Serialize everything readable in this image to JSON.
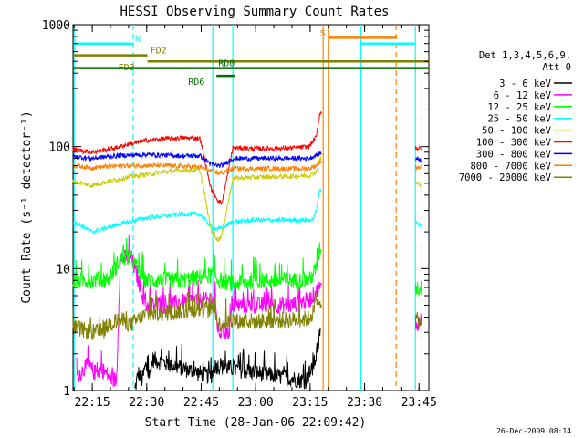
{
  "chart_data": {
    "type": "line",
    "title": "HESSI Observing Summary Count Rates",
    "xlabel": "Start Time (28-Jan-06 22:09:42)",
    "ylabel": "Count Rate (s⁻¹ detector⁻¹)",
    "y_scale": "log",
    "ylim": [
      1,
      1000
    ],
    "xlim_minutes_after_22_09_42": [
      0,
      98
    ],
    "y_ticks": [
      "1",
      "10",
      "100",
      "1000"
    ],
    "x_ticks": [
      {
        "label": "22:15",
        "minute": 5.3
      },
      {
        "label": "22:30",
        "minute": 20.3
      },
      {
        "label": "22:45",
        "minute": 35.3
      },
      {
        "label": "23:00",
        "minute": 50.3
      },
      {
        "label": "23:15",
        "minute": 65.3
      },
      {
        "label": "23:30",
        "minute": 80.3
      },
      {
        "label": "23:45",
        "minute": 95.3
      }
    ],
    "legend_header": [
      "Det 1,3,4,5,6,9,",
      "Att 0"
    ],
    "legend_placement": "right",
    "timestamp": "26-Dec-2009 08:14",
    "gap_minutes": [
      [
        68.5,
        94.3
      ]
    ],
    "series": [
      {
        "name": "3 - 6 keV",
        "color": "#000000",
        "points": [
          [
            17,
            1
          ],
          [
            18,
            1.4
          ],
          [
            19,
            1.2
          ],
          [
            20,
            1.6
          ],
          [
            21,
            1.3
          ],
          [
            22,
            1.8
          ],
          [
            38,
            1.3
          ],
          [
            39,
            1.6
          ],
          [
            64,
            1.2
          ],
          [
            66,
            1.5
          ],
          [
            67.5,
            2.2
          ],
          [
            68.2,
            3.5
          ]
        ]
      },
      {
        "name": "6 - 12 keV",
        "color": "#ff00ff",
        "points": [
          [
            1,
            1.3
          ],
          [
            4,
            1.6
          ],
          [
            6,
            1.4
          ],
          [
            8,
            1.5
          ],
          [
            10,
            1.3
          ],
          [
            12,
            1.2
          ],
          [
            13,
            12
          ],
          [
            16,
            12.5
          ],
          [
            20,
            5
          ],
          [
            25,
            5
          ],
          [
            33,
            5.5
          ],
          [
            39,
            5.5
          ],
          [
            40,
            3
          ],
          [
            43,
            3
          ],
          [
            44,
            5
          ],
          [
            50,
            5
          ],
          [
            55,
            5
          ],
          [
            60,
            5
          ],
          [
            65,
            5.5
          ],
          [
            68,
            7
          ],
          [
            94.5,
            3.5
          ],
          [
            96,
            3.8
          ]
        ]
      },
      {
        "name": "12 - 25 keV",
        "color": "#00ff00",
        "points": [
          [
            0,
            8
          ],
          [
            5,
            8
          ],
          [
            10,
            8.2
          ],
          [
            13,
            12
          ],
          [
            16,
            12
          ],
          [
            20,
            8
          ],
          [
            30,
            8
          ],
          [
            35,
            8.5
          ],
          [
            39,
            9
          ],
          [
            40,
            8
          ],
          [
            44,
            7.5
          ],
          [
            50,
            8
          ],
          [
            60,
            8
          ],
          [
            65,
            8
          ],
          [
            67,
            10
          ],
          [
            68,
            15
          ],
          [
            94.5,
            7
          ],
          [
            96,
            6.8
          ]
        ]
      },
      {
        "name": "25 - 50 keV",
        "color": "#00ffff",
        "points": [
          [
            0,
            24
          ],
          [
            3,
            22
          ],
          [
            5,
            20
          ],
          [
            8,
            21
          ],
          [
            10,
            22
          ],
          [
            15,
            24
          ],
          [
            20,
            26
          ],
          [
            25,
            27
          ],
          [
            30,
            28
          ],
          [
            35,
            28
          ],
          [
            38,
            22
          ],
          [
            40,
            21
          ],
          [
            44,
            24
          ],
          [
            50,
            25
          ],
          [
            60,
            25
          ],
          [
            66,
            25
          ],
          [
            67,
            30
          ],
          [
            68,
            45
          ],
          [
            94.5,
            24
          ],
          [
            96,
            22
          ]
        ]
      },
      {
        "name": "50 - 100 keV",
        "color": "#cccc00",
        "points": [
          [
            0,
            52
          ],
          [
            5,
            48
          ],
          [
            10,
            52
          ],
          [
            15,
            56
          ],
          [
            20,
            59
          ],
          [
            25,
            62
          ],
          [
            30,
            64
          ],
          [
            35,
            64
          ],
          [
            38,
            21
          ],
          [
            40,
            17
          ],
          [
            41,
            19
          ],
          [
            44,
            55
          ],
          [
            50,
            56
          ],
          [
            60,
            57
          ],
          [
            65,
            58
          ],
          [
            67,
            62
          ],
          [
            68,
            80
          ],
          [
            94.5,
            50
          ],
          [
            96,
            49
          ]
        ]
      },
      {
        "name": "100 - 300 keV",
        "color": "#ff0000",
        "points": [
          [
            0,
            95
          ],
          [
            5,
            90
          ],
          [
            10,
            95
          ],
          [
            15,
            104
          ],
          [
            20,
            112
          ],
          [
            25,
            116
          ],
          [
            30,
            118
          ],
          [
            35,
            117
          ],
          [
            38,
            45
          ],
          [
            40,
            36
          ],
          [
            41,
            34
          ],
          [
            44,
            98
          ],
          [
            50,
            96
          ],
          [
            60,
            97
          ],
          [
            65,
            100
          ],
          [
            67,
            120
          ],
          [
            68,
            190
          ],
          [
            94.5,
            98
          ],
          [
            96,
            95
          ]
        ]
      },
      {
        "name": "300 - 800 keV",
        "color": "#0000ff",
        "points": [
          [
            0,
            83
          ],
          [
            5,
            80
          ],
          [
            10,
            83
          ],
          [
            15,
            85
          ],
          [
            20,
            86
          ],
          [
            25,
            85
          ],
          [
            30,
            84
          ],
          [
            35,
            84
          ],
          [
            38,
            72
          ],
          [
            40,
            70
          ],
          [
            41,
            70
          ],
          [
            44,
            80
          ],
          [
            50,
            80
          ],
          [
            60,
            80
          ],
          [
            65,
            80
          ],
          [
            67,
            85
          ],
          [
            68,
            88
          ],
          [
            94.5,
            80
          ],
          [
            96,
            78
          ]
        ]
      },
      {
        "name": "800 - 7000 keV",
        "color": "#ff8000",
        "points": [
          [
            0,
            70
          ],
          [
            5,
            67
          ],
          [
            10,
            69
          ],
          [
            15,
            70
          ],
          [
            20,
            70
          ],
          [
            25,
            70
          ],
          [
            30,
            69
          ],
          [
            35,
            68
          ],
          [
            38,
            63
          ],
          [
            40,
            61
          ],
          [
            41,
            61
          ],
          [
            44,
            66
          ],
          [
            50,
            66
          ],
          [
            60,
            66
          ],
          [
            65,
            66
          ],
          [
            67,
            70
          ],
          [
            68,
            75
          ],
          [
            94.5,
            68
          ],
          [
            96,
            67
          ]
        ]
      },
      {
        "name": "7000 - 20000 keV",
        "color": "#808000",
        "points": [
          [
            0,
            3.3
          ],
          [
            5,
            3
          ],
          [
            8,
            3
          ],
          [
            10,
            3.5
          ],
          [
            13,
            3.8
          ],
          [
            16,
            3.5
          ],
          [
            20,
            4.2
          ],
          [
            25,
            4.3
          ],
          [
            30,
            4.5
          ],
          [
            35,
            4.6
          ],
          [
            39,
            4.6
          ],
          [
            40,
            3.5
          ],
          [
            44,
            3.7
          ],
          [
            50,
            3.7
          ],
          [
            60,
            3.8
          ],
          [
            65,
            3.9
          ],
          [
            68,
            5.5
          ],
          [
            94.5,
            3.8
          ],
          [
            96,
            3.6
          ]
        ]
      }
    ],
    "event_markers": [
      {
        "label": "N",
        "color": "#00ffff",
        "y": 700,
        "x_ranges": [
          [
            0,
            16.6
          ],
          [
            79.3,
            94.3
          ]
        ]
      },
      {
        "label": "FD2",
        "color": "#808000",
        "y": 560,
        "x_ranges": [
          [
            0,
            20.5
          ]
        ]
      },
      {
        "label": "FD3",
        "color": "#808000",
        "y": 500,
        "x_ranges": [
          [
            20.5,
            98
          ]
        ]
      },
      {
        "label": "RD0",
        "color": "#007000",
        "y": 440,
        "x_ranges": [
          [
            0,
            98
          ]
        ]
      },
      {
        "label": "RD6",
        "color": "#007000",
        "y": 380,
        "x_ranges": [
          [
            39.5,
            44.5
          ]
        ]
      },
      {
        "label": "S",
        "color": "#ff8000",
        "y": 780,
        "x_ranges": [
          [
            70.3,
            89
          ]
        ]
      }
    ],
    "vertical_lines": [
      {
        "minute": 0.3,
        "color": "#00ffff",
        "style": "solid"
      },
      {
        "minute": 16.6,
        "color": "#00ffff",
        "style": "dashed"
      },
      {
        "minute": 38.5,
        "color": "#00ffff",
        "style": "solid"
      },
      {
        "minute": 44.0,
        "color": "#00ffff",
        "style": "solid"
      },
      {
        "minute": 68.9,
        "color": "#ff8000",
        "style": "solid"
      },
      {
        "minute": 70.3,
        "color": "#ff8000",
        "style": "solid"
      },
      {
        "minute": 79.3,
        "color": "#00ffff",
        "style": "solid"
      },
      {
        "minute": 89.0,
        "color": "#ff8000",
        "style": "dashed"
      },
      {
        "minute": 94.3,
        "color": "#00ffff",
        "style": "solid"
      },
      {
        "minute": 96.1,
        "color": "#00ffff",
        "style": "dashed"
      }
    ]
  }
}
